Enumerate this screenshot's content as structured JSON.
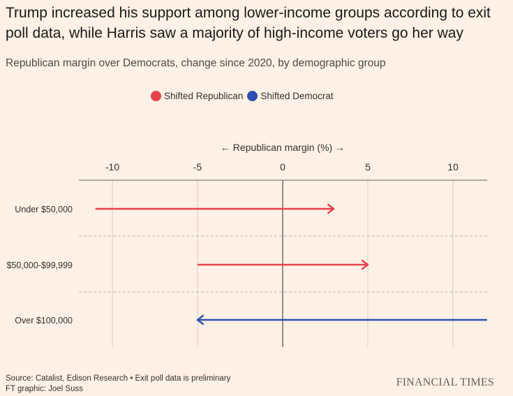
{
  "title": "Trump increased his support among lower-income groups according to exit poll data, while Harris saw a majority of high-income voters go her way",
  "subtitle": "Republican margin over Democrats, change since 2020, by demographic group",
  "legend": [
    {
      "label": "Shifted Republican",
      "color": "#e8414c"
    },
    {
      "label": "Shifted Democrat",
      "color": "#2c4fb0"
    }
  ],
  "footer": {
    "source": "Source: Catalist, Edison Research • Exit poll data is preliminary",
    "credit": "FT graphic: Joel Suss"
  },
  "brand": "FINANCIAL TIMES",
  "chart_data": {
    "type": "arrow",
    "axis_title": "← Republican margin (%) →",
    "xlim": [
      -12,
      12
    ],
    "ticks": [
      -10,
      -5,
      0,
      5,
      10
    ],
    "tick_labels": [
      "-10",
      "-5",
      "0",
      "5",
      "10"
    ],
    "rows": [
      {
        "label": "Under $50,000",
        "from": -11,
        "to": 3,
        "shift": "Republican"
      },
      {
        "label": "$50,000-$99,999",
        "from": -5,
        "to": 5,
        "shift": "Republican"
      },
      {
        "label": "Over $100,000",
        "from": 12,
        "to": -5,
        "shift": "Democrat"
      }
    ],
    "colors": {
      "Republican": "#e8414c",
      "Democrat": "#2c4fb0"
    }
  }
}
